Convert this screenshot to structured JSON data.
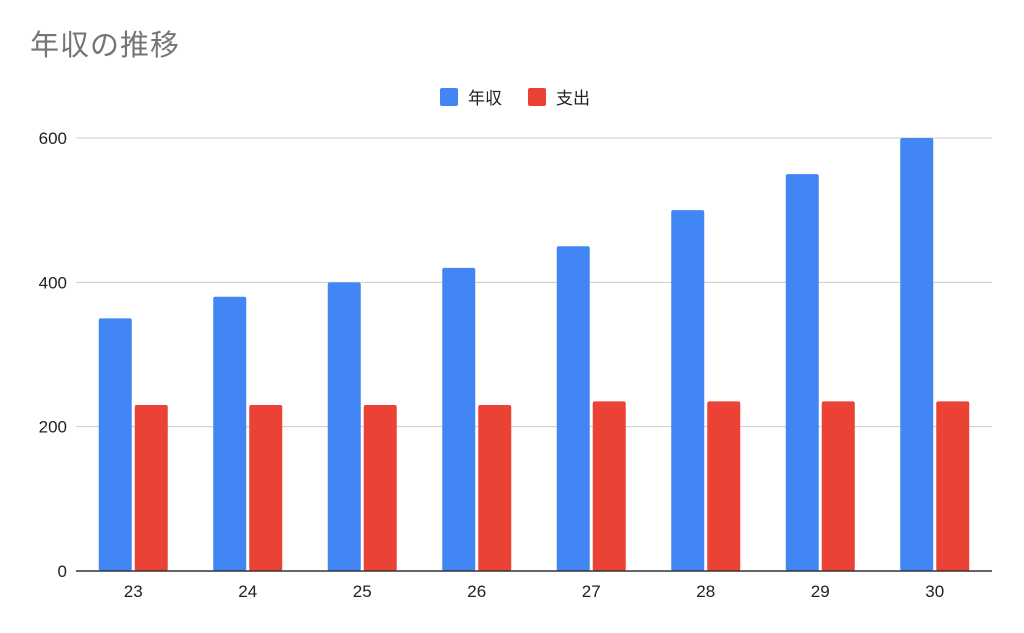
{
  "chart_data": {
    "type": "bar",
    "title": "年収の推移",
    "xlabel": "",
    "ylabel": "",
    "categories": [
      "23",
      "24",
      "25",
      "26",
      "27",
      "28",
      "29",
      "30"
    ],
    "series": [
      {
        "name": "年収",
        "color": "#4285f4",
        "values": [
          350,
          380,
          400,
          420,
          450,
          500,
          550,
          600
        ]
      },
      {
        "name": "支出",
        "color": "#ea4335",
        "values": [
          230,
          230,
          230,
          230,
          235,
          235,
          235,
          235
        ]
      }
    ],
    "ylim": [
      0,
      600
    ],
    "yticks": [
      "0",
      "200",
      "400",
      "600"
    ],
    "grid": true,
    "legend_position": "top-center"
  }
}
